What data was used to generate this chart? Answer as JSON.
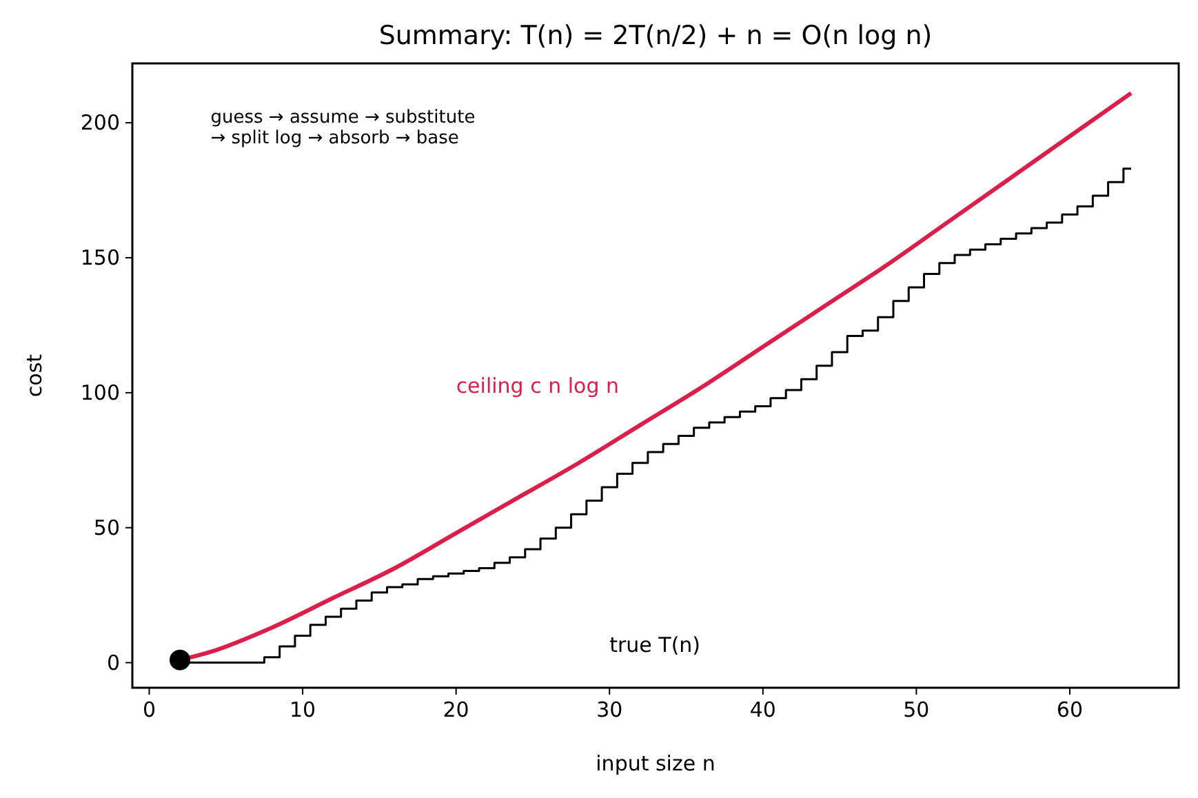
{
  "chart_data": {
    "type": "line",
    "title": "Summary: T(n) = 2T(n/2) + n = O(n log n)",
    "xlabel": "input size n",
    "ylabel": "cost",
    "xlim": [
      -1.1,
      67.1
    ],
    "ylim": [
      -9.3,
      222
    ],
    "xticks": [
      0,
      10,
      20,
      30,
      40,
      50,
      60
    ],
    "yticks": [
      0,
      50,
      100,
      150,
      200
    ],
    "grid": false,
    "legend": false,
    "annotations": [
      "guess → assume → substitute\n→ split log → absorb → base"
    ],
    "series": [
      {
        "name": "ceiling c n log n",
        "color": "#dc1e4a",
        "x": [
          2,
          4,
          8,
          12,
          16,
          20,
          24,
          28,
          32,
          36,
          40,
          44,
          48,
          52,
          56,
          60,
          64
        ],
        "values": [
          1,
          4,
          13,
          24,
          35,
          48,
          61,
          74,
          88,
          102,
          117,
          132,
          147,
          163,
          179,
          195,
          211
        ]
      },
      {
        "name": "true T(n)",
        "type": "step",
        "color": "#000000",
        "x": [
          2,
          3,
          4,
          5,
          6,
          7,
          8,
          9,
          10,
          11,
          12,
          13,
          14,
          15,
          16,
          17,
          18,
          19,
          20,
          21,
          22,
          23,
          24,
          25,
          26,
          27,
          28,
          29,
          30,
          31,
          32,
          33,
          34,
          35,
          36,
          37,
          38,
          39,
          40,
          41,
          42,
          43,
          44,
          45,
          46,
          47,
          48,
          49,
          50,
          51,
          52,
          53,
          54,
          55,
          56,
          57,
          58,
          59,
          60,
          61,
          62,
          63,
          64
        ],
        "values": [
          0,
          0,
          0,
          0,
          0,
          0,
          2,
          6,
          10,
          14,
          17,
          20,
          23,
          26,
          28,
          29,
          31,
          32,
          33,
          34,
          35,
          37,
          39,
          42,
          46,
          50,
          55,
          60,
          65,
          70,
          74,
          78,
          81,
          84,
          87,
          89,
          91,
          93,
          95,
          98,
          101,
          105,
          110,
          115,
          121,
          123,
          128,
          134,
          139,
          144,
          148,
          151,
          153,
          155,
          157,
          159,
          161,
          163,
          166,
          169,
          173,
          178,
          183
        ]
      },
      {
        "type": "scatter",
        "color": "#000000",
        "marker": "circle",
        "x": [
          2
        ],
        "values": [
          1
        ]
      }
    ]
  }
}
